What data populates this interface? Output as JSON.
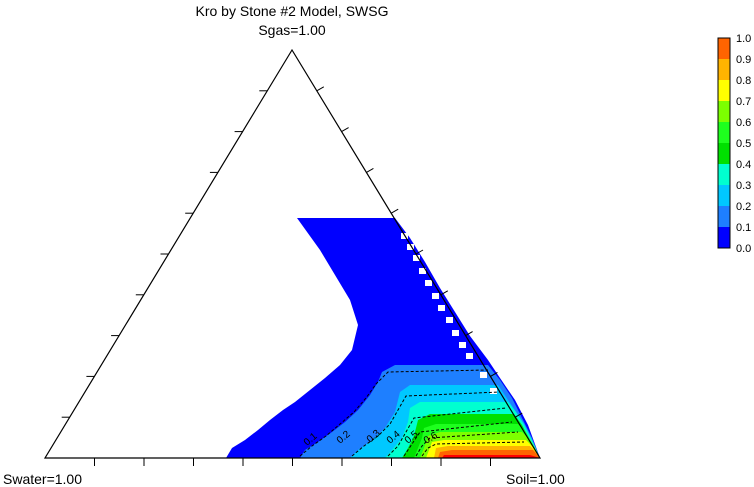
{
  "chart_data": {
    "type": "ternary-contour",
    "title": "Kro by Stone #2 Model, SWSG",
    "corners": {
      "top": "Sgas=1.00",
      "left": "Swater=1.00",
      "right": "Soil=1.00"
    },
    "colorbar": {
      "levels": [
        {
          "label": "0.0",
          "color": "#0000ff"
        },
        {
          "label": "0.1",
          "color": "#1e7fff"
        },
        {
          "label": "0.2",
          "color": "#00c8ff"
        },
        {
          "label": "0.3",
          "color": "#00ffd0"
        },
        {
          "label": "0.4",
          "color": "#00e000"
        },
        {
          "label": "0.5",
          "color": "#1eff1e"
        },
        {
          "label": "0.6",
          "color": "#7cff00"
        },
        {
          "label": "0.7",
          "color": "#ffff00"
        },
        {
          "label": "0.8",
          "color": "#ffb400"
        },
        {
          "label": "0.9",
          "color": "#ff6400"
        },
        {
          "label": "1.0",
          "color": "#ff0000"
        }
      ]
    },
    "contour_labels": [
      "0.1",
      "0.2",
      "0.3",
      "0.4",
      "0.5",
      "0.6"
    ]
  }
}
